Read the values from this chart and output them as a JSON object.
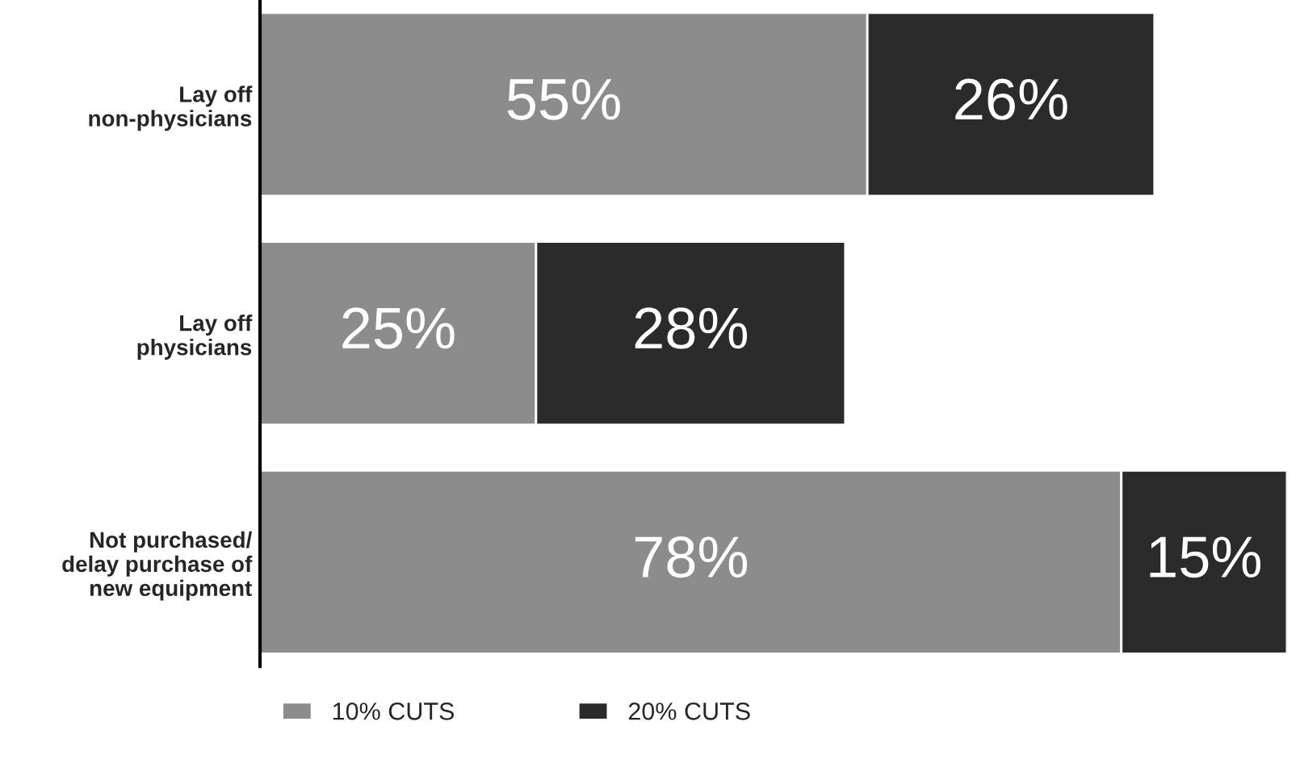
{
  "chart_data": {
    "type": "bar",
    "orientation": "horizontal",
    "stacked": true,
    "tick_labels": "y",
    "legend": "bottom",
    "grid": false,
    "categories": [
      "Lay off\nnon-physicians",
      "Lay off\nphysicians",
      "Not purchased/\ndelay purchase of\nnew equipment"
    ],
    "series": [
      {
        "name": "10% CUTS",
        "color": "#8c8c8c",
        "values": [
          55,
          25,
          78
        ],
        "value_labels": [
          "55%",
          "25%",
          "78%"
        ]
      },
      {
        "name": "20% CUTS",
        "color": "#2b2b2b",
        "values": [
          26,
          28,
          15
        ],
        "value_labels": [
          "26%",
          "28%",
          "15%"
        ]
      }
    ]
  }
}
